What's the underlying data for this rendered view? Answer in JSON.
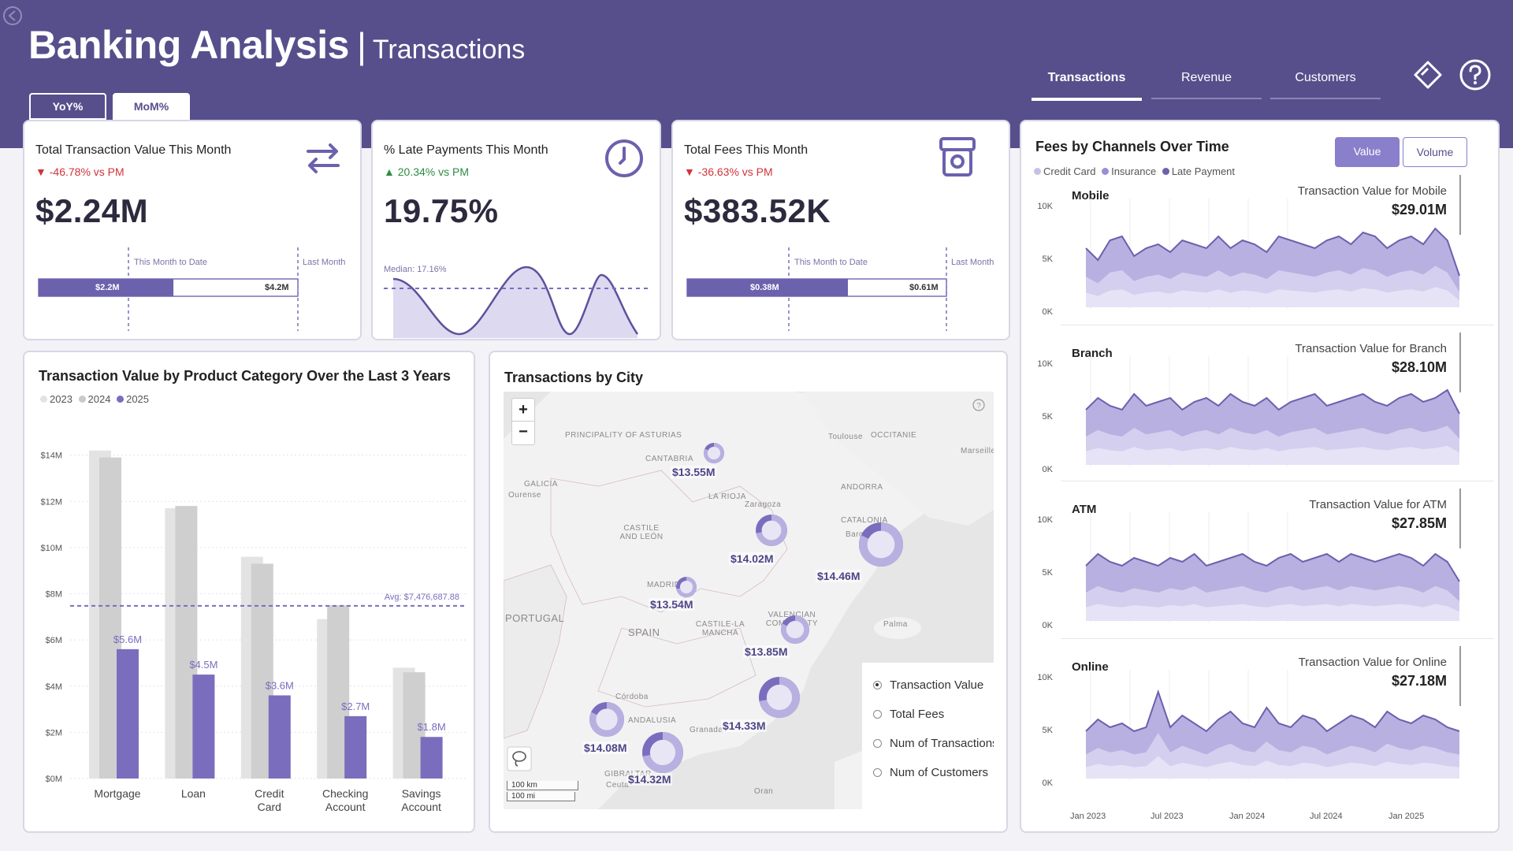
{
  "header": {
    "title": "Banking Analysis",
    "separator": "|",
    "subtitle": "Transactions"
  },
  "toggles": {
    "yoy": "YoY%",
    "mom": "MoM%"
  },
  "nav": {
    "transactions": "Transactions",
    "revenue": "Revenue",
    "customers": "Customers"
  },
  "colors": {
    "brand": "#574f8c",
    "accent": "#7b6dbd",
    "light": "#c7c1e6",
    "red": "#d0333b",
    "green": "#2e8b44"
  },
  "kpi1": {
    "title": "Total Transaction Value This Month",
    "delta": "-46.78% vs PM",
    "value": "$2.24M",
    "mtd_label": "This Month to Date",
    "last_label": "Last Month",
    "mtd_value": "$2.2M",
    "last_value": "$4.2M",
    "icon": "swap-arrows-icon",
    "mtd_share": 0.52
  },
  "kpi2": {
    "title": "% Late Payments This Month",
    "delta": "20.34% vs PM",
    "value": "19.75%",
    "median_label": "Median: 17.16%",
    "icon": "clock-icon"
  },
  "kpi3": {
    "title": "Total Fees This Month",
    "delta": "-36.63% vs PM",
    "value": "$383.52K",
    "mtd_label": "This Month to Date",
    "last_label": "Last Month",
    "mtd_value": "$0.38M",
    "last_value": "$0.61M",
    "icon": "cash-register-icon",
    "mtd_share": 0.62
  },
  "product_chart": {
    "title": "Transaction Value by Product Category Over the Last 3 Years",
    "legend": [
      "2023",
      "2024",
      "2025"
    ],
    "avg_label": "Avg: $7,476,687.88"
  },
  "map": {
    "title": "Transactions by City",
    "zoom_in": "+",
    "zoom_out": "−",
    "scale_km": "100 km",
    "scale_mi": "100 mi",
    "cities": [
      {
        "label": "$13.55M"
      },
      {
        "label": "$14.02M"
      },
      {
        "label": "$14.46M"
      },
      {
        "label": "$13.54M"
      },
      {
        "label": "$13.85M"
      },
      {
        "label": "$14.33M"
      },
      {
        "label": "$14.08M"
      },
      {
        "label": "$14.32M"
      }
    ],
    "places": [
      "PRINCIPALITY OF ASTURIAS",
      "CANTABRIA",
      "GALICIA",
      "Ourense",
      "LA RIOJA",
      "CASTILE AND LEÓN",
      "Zaragoza",
      "CATALONIA",
      "Barcelona",
      "MADRID",
      "PORTUGAL",
      "SPAIN",
      "VALENCIAN COMMUNITY",
      "CASTILE-LA MANCHA",
      "ANDALUSIA",
      "Córdoba",
      "Granada",
      "GIBRALTAR",
      "Ceuta",
      "Oran",
      "Palma",
      "ANDORRA",
      "Toulouse",
      "OCCITANIE",
      "Marseille"
    ],
    "options": [
      "Transaction Value",
      "Total Fees",
      "Num of Transactions",
      "Num of Customers"
    ]
  },
  "fees_chart": {
    "title": "Fees by Channels Over Time",
    "btn_value": "Value",
    "btn_volume": "Volume",
    "legend": [
      "Credit Card",
      "Insurance",
      "Late Payment"
    ],
    "y_ticks": [
      "10K",
      "5K",
      "0K"
    ],
    "x_ticks": [
      "Jan 2023",
      "Jul 2023",
      "Jan 2024",
      "Jul 2024",
      "Jan 2025"
    ],
    "panels": [
      {
        "name": "Mobile",
        "sub": "Transaction Value for Mobile",
        "value": "$29.01M"
      },
      {
        "name": "Branch",
        "sub": "Transaction Value for Branch",
        "value": "$28.10M"
      },
      {
        "name": "ATM",
        "sub": "Transaction Value for ATM",
        "value": "$27.85M"
      },
      {
        "name": "Online",
        "sub": "Transaction Value for Online",
        "value": "$27.18M"
      }
    ]
  },
  "chart_data": {
    "type": "bar",
    "title": "Transaction Value by Product Category Over the Last 3 Years",
    "categories": [
      "Mortgage",
      "Loan",
      "Credit Card",
      "Checking Account",
      "Savings Account"
    ],
    "series": [
      {
        "name": "2023",
        "values": [
          14.2,
          11.7,
          9.6,
          6.9,
          4.8
        ]
      },
      {
        "name": "2024",
        "values": [
          13.9,
          11.8,
          9.3,
          7.5,
          4.6
        ]
      },
      {
        "name": "2025",
        "values": [
          5.6,
          4.5,
          3.6,
          2.7,
          1.8
        ]
      }
    ],
    "data_labels": [
      "$5.6M",
      "$4.5M",
      "$3.6M",
      "$2.7M",
      "$1.8M"
    ],
    "y_ticks": [
      "$0M",
      "$2M",
      "$4M",
      "$6M",
      "$8M",
      "$10M",
      "$12M",
      "$14M"
    ],
    "average": 7.476687,
    "ylim": [
      0,
      14.5
    ],
    "xlabel": "",
    "ylabel": ""
  }
}
